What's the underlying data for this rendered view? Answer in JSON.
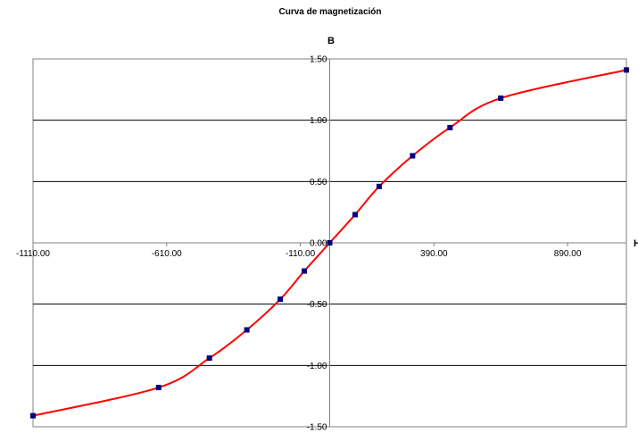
{
  "chart_data": {
    "type": "scatter",
    "title": "Curva de magnetización",
    "ylabel": "B",
    "xlabel": "H",
    "xlim": [
      -1110,
      1110
    ],
    "ylim": [
      -1.5,
      1.5
    ],
    "x_ticks": [
      -1110,
      -610,
      -110,
      390,
      890
    ],
    "x_tick_labels": [
      "-1110.00",
      "-610.00",
      "-110.00",
      "390.00",
      "890.00"
    ],
    "y_ticks": [
      -1.5,
      -1.0,
      -0.5,
      0.0,
      0.5,
      1.0,
      1.5
    ],
    "y_tick_labels": [
      "-1.50",
      "-1.00",
      "-0.50",
      "0.00",
      "0.50",
      "1.00",
      "1.50"
    ],
    "grid": "horizontal",
    "series": [
      {
        "x": [
          -1110,
          -640,
          -450,
          -310,
          -185,
          -95,
          0,
          95,
          185,
          310,
          450,
          640,
          1110
        ],
        "y": [
          -1.41,
          -1.18,
          -0.94,
          -0.71,
          -0.46,
          -0.23,
          0.0,
          0.23,
          0.46,
          0.71,
          0.94,
          1.18,
          1.41
        ],
        "color": "#ff0000",
        "marker_color": "#000080"
      }
    ]
  }
}
